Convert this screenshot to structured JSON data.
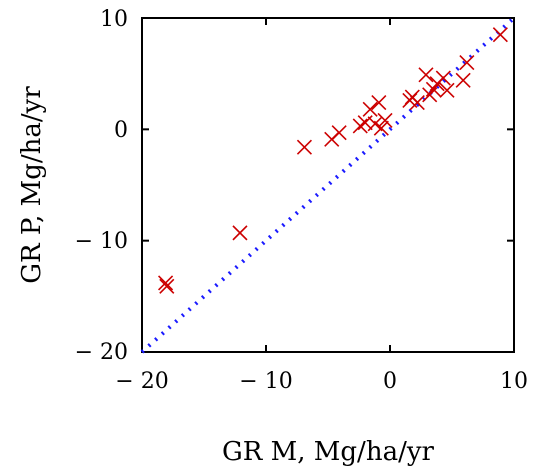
{
  "chart_data": {
    "type": "scatter",
    "title": "",
    "xlabel": "GR M, Mg/ha/yr",
    "ylabel": "GR P, Mg/ha/yr",
    "xlim": [
      -20,
      10
    ],
    "ylim": [
      -20,
      10
    ],
    "x_ticks": [
      "− 20",
      "− 10",
      "0",
      "10"
    ],
    "y_ticks": [
      "10",
      "0",
      "− 10",
      "− 20"
    ],
    "grid": false,
    "series": [
      {
        "marker": "x",
        "color": "#cc0000",
        "points": [
          [
            -18.1,
            -13.8
          ],
          [
            -18.0,
            -14.1
          ],
          [
            -12.1,
            -9.3
          ],
          [
            -6.9,
            -1.6
          ],
          [
            -4.7,
            -0.9
          ],
          [
            -4.1,
            -0.3
          ],
          [
            -2.4,
            0.3
          ],
          [
            -2.0,
            0.6
          ],
          [
            -1.6,
            1.8
          ],
          [
            -1.2,
            0.5
          ],
          [
            -0.9,
            2.4
          ],
          [
            -0.7,
            0.1
          ],
          [
            -0.4,
            0.8
          ],
          [
            1.6,
            2.6
          ],
          [
            1.8,
            2.9
          ],
          [
            2.2,
            2.4
          ],
          [
            2.9,
            4.9
          ],
          [
            3.2,
            3.1
          ],
          [
            3.5,
            3.6
          ],
          [
            3.8,
            4.1
          ],
          [
            4.3,
            4.6
          ],
          [
            4.6,
            3.5
          ],
          [
            5.9,
            4.4
          ],
          [
            6.2,
            6.0
          ],
          [
            8.9,
            8.5
          ]
        ]
      },
      {
        "line": "dotted",
        "color": "#1a1aff",
        "points": [
          [
            -20,
            -20
          ],
          [
            10,
            10
          ]
        ]
      }
    ]
  }
}
